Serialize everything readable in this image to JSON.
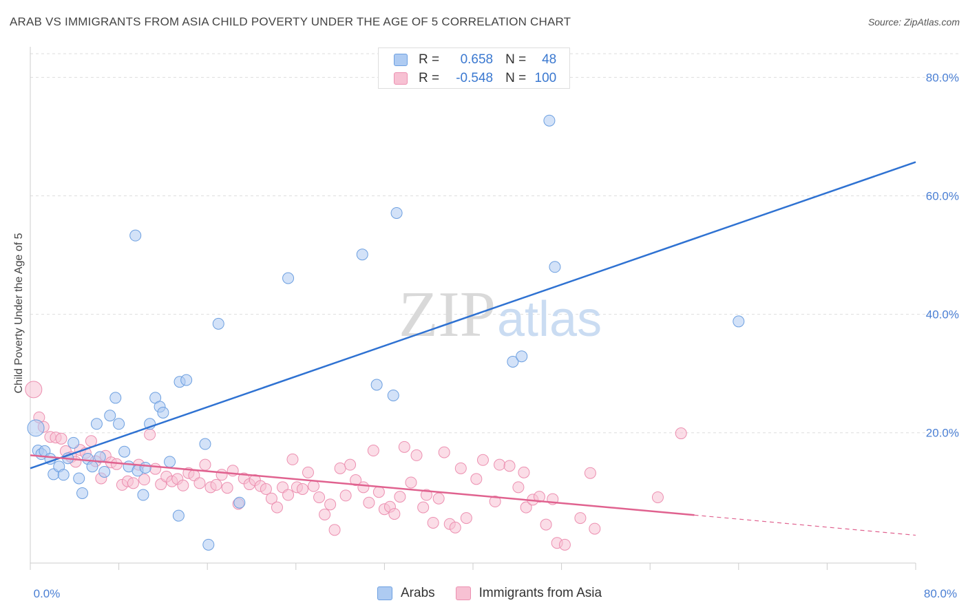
{
  "title": "ARAB VS IMMIGRANTS FROM ASIA CHILD POVERTY UNDER THE AGE OF 5 CORRELATION CHART",
  "source": "Source: ZipAtlas.com",
  "watermark": {
    "zip": "ZIP",
    "atlas": "atlas"
  },
  "colors": {
    "arabs_fill": "#aecbf2",
    "arabs_stroke": "#6c9fe0",
    "arabs_line": "#2f72d2",
    "asia_fill": "#f7c1d3",
    "asia_stroke": "#ec8fb0",
    "asia_line": "#e0628f",
    "tick_label": "#4a7fd4",
    "grid": "#dddddd"
  },
  "legend_top": {
    "rows": [
      {
        "r_label": "R =",
        "r_value": "0.658",
        "n_label": "N =",
        "n_value": "48"
      },
      {
        "r_label": "R =",
        "r_value": "-0.548",
        "n_label": "N =",
        "n_value": "100"
      }
    ]
  },
  "legend_bottom": {
    "items": [
      "Arabs",
      "Immigrants from Asia"
    ]
  },
  "chart_data": {
    "type": "scatter",
    "title": "ARAB VS IMMIGRANTS FROM ASIA CHILD POVERTY UNDER THE AGE OF 5 CORRELATION CHART",
    "xlabel": "",
    "ylabel": "Child Poverty Under the Age of 5",
    "xlim": [
      0,
      80
    ],
    "ylim": [
      -2,
      84
    ],
    "x_tick_labels": [
      "0.0%",
      "80.0%"
    ],
    "y_ticks": [
      20,
      40,
      60,
      80
    ],
    "y_tick_labels": [
      "20.0%",
      "40.0%",
      "60.0%",
      "80.0%"
    ],
    "grid": true,
    "legend_position": "top-center",
    "series": [
      {
        "name": "Arabs",
        "r": 0.658,
        "n": 48,
        "trend": {
          "x": [
            0,
            80
          ],
          "y": [
            14.0,
            65.7
          ]
        },
        "points": [
          [
            0.5,
            20.8
          ],
          [
            0.7,
            17.0
          ],
          [
            1.0,
            16.4
          ],
          [
            1.3,
            16.9
          ],
          [
            1.8,
            15.6
          ],
          [
            2.1,
            13.0
          ],
          [
            2.6,
            14.3
          ],
          [
            3.0,
            12.9
          ],
          [
            3.4,
            15.7
          ],
          [
            3.9,
            18.3
          ],
          [
            4.4,
            12.3
          ],
          [
            4.7,
            9.8
          ],
          [
            5.2,
            15.6
          ],
          [
            5.6,
            14.3
          ],
          [
            6.0,
            21.5
          ],
          [
            6.3,
            15.9
          ],
          [
            6.7,
            13.4
          ],
          [
            7.2,
            22.9
          ],
          [
            7.7,
            25.9
          ],
          [
            8.0,
            21.5
          ],
          [
            8.5,
            16.8
          ],
          [
            8.9,
            14.3
          ],
          [
            9.5,
            53.3
          ],
          [
            9.7,
            13.6
          ],
          [
            10.2,
            9.5
          ],
          [
            10.4,
            14.1
          ],
          [
            10.8,
            21.5
          ],
          [
            11.3,
            25.9
          ],
          [
            11.7,
            24.4
          ],
          [
            12.0,
            23.4
          ],
          [
            12.6,
            15.1
          ],
          [
            13.4,
            6.0
          ],
          [
            13.5,
            28.6
          ],
          [
            14.1,
            28.9
          ],
          [
            15.8,
            18.1
          ],
          [
            16.1,
            1.1
          ],
          [
            17.0,
            38.4
          ],
          [
            18.9,
            8.2
          ],
          [
            23.3,
            46.1
          ],
          [
            30.0,
            50.1
          ],
          [
            31.3,
            28.1
          ],
          [
            33.1,
            57.1
          ],
          [
            32.8,
            26.3
          ],
          [
            43.6,
            32.0
          ],
          [
            44.4,
            32.9
          ],
          [
            46.9,
            72.7
          ],
          [
            47.4,
            48.0
          ],
          [
            64.0,
            38.8
          ]
        ]
      },
      {
        "name": "Immigrants from Asia",
        "r": -0.548,
        "n": 100,
        "trend": {
          "x": [
            0,
            60
          ],
          "y": [
            16.2,
            6.1
          ]
        },
        "trend_dashed": {
          "x": [
            60,
            80
          ],
          "y": [
            6.1,
            2.7
          ]
        },
        "points": [
          [
            0.3,
            27.3
          ],
          [
            0.8,
            22.6
          ],
          [
            1.2,
            21.0
          ],
          [
            1.8,
            19.3
          ],
          [
            2.3,
            19.2
          ],
          [
            2.8,
            19.0
          ],
          [
            3.2,
            16.9
          ],
          [
            3.7,
            15.9
          ],
          [
            4.1,
            15.1
          ],
          [
            4.5,
            17.1
          ],
          [
            5.0,
            16.6
          ],
          [
            5.5,
            18.6
          ],
          [
            5.9,
            15.2
          ],
          [
            6.4,
            12.3
          ],
          [
            6.8,
            16.1
          ],
          [
            7.3,
            15.0
          ],
          [
            7.8,
            14.7
          ],
          [
            8.3,
            11.2
          ],
          [
            8.8,
            11.8
          ],
          [
            9.3,
            11.5
          ],
          [
            9.8,
            14.6
          ],
          [
            10.3,
            12.1
          ],
          [
            10.8,
            19.7
          ],
          [
            11.3,
            13.9
          ],
          [
            11.8,
            11.3
          ],
          [
            12.3,
            12.6
          ],
          [
            12.8,
            11.8
          ],
          [
            13.3,
            12.2
          ],
          [
            13.8,
            11.1
          ],
          [
            14.3,
            13.2
          ],
          [
            14.8,
            12.8
          ],
          [
            15.3,
            11.5
          ],
          [
            15.8,
            14.6
          ],
          [
            16.3,
            10.8
          ],
          [
            16.8,
            11.2
          ],
          [
            17.3,
            12.9
          ],
          [
            17.8,
            10.7
          ],
          [
            18.3,
            13.6
          ],
          [
            18.8,
            8.0
          ],
          [
            19.3,
            12.3
          ],
          [
            19.8,
            11.3
          ],
          [
            20.3,
            12.0
          ],
          [
            20.8,
            11.0
          ],
          [
            21.3,
            10.5
          ],
          [
            21.8,
            8.9
          ],
          [
            22.3,
            7.4
          ],
          [
            22.8,
            10.8
          ],
          [
            23.3,
            9.5
          ],
          [
            23.7,
            15.5
          ],
          [
            24.1,
            10.8
          ],
          [
            24.6,
            10.5
          ],
          [
            25.1,
            13.3
          ],
          [
            25.6,
            11.0
          ],
          [
            26.1,
            9.1
          ],
          [
            26.6,
            6.2
          ],
          [
            27.1,
            7.9
          ],
          [
            27.5,
            3.6
          ],
          [
            28.0,
            14.0
          ],
          [
            28.5,
            9.4
          ],
          [
            28.9,
            14.6
          ],
          [
            29.4,
            12.0
          ],
          [
            30.1,
            10.8
          ],
          [
            30.6,
            8.2
          ],
          [
            31.0,
            17.0
          ],
          [
            31.5,
            10.0
          ],
          [
            32.0,
            7.1
          ],
          [
            32.5,
            7.5
          ],
          [
            32.9,
            6.3
          ],
          [
            33.4,
            9.2
          ],
          [
            33.8,
            17.6
          ],
          [
            34.4,
            11.6
          ],
          [
            34.9,
            16.2
          ],
          [
            35.5,
            7.4
          ],
          [
            35.8,
            9.5
          ],
          [
            36.4,
            4.8
          ],
          [
            36.9,
            8.9
          ],
          [
            37.4,
            16.7
          ],
          [
            37.9,
            4.6
          ],
          [
            38.4,
            4.0
          ],
          [
            38.9,
            14.0
          ],
          [
            39.4,
            5.6
          ],
          [
            40.3,
            12.2
          ],
          [
            40.9,
            15.4
          ],
          [
            42.0,
            8.4
          ],
          [
            42.4,
            14.6
          ],
          [
            43.3,
            14.4
          ],
          [
            44.1,
            10.8
          ],
          [
            44.6,
            13.3
          ],
          [
            44.8,
            7.4
          ],
          [
            45.4,
            8.7
          ],
          [
            46.0,
            9.2
          ],
          [
            46.6,
            4.5
          ],
          [
            47.2,
            8.8
          ],
          [
            47.6,
            1.4
          ],
          [
            48.3,
            1.1
          ],
          [
            49.7,
            5.6
          ],
          [
            50.6,
            13.2
          ],
          [
            51.0,
            3.8
          ],
          [
            56.7,
            9.1
          ],
          [
            58.8,
            19.9
          ]
        ]
      }
    ]
  }
}
